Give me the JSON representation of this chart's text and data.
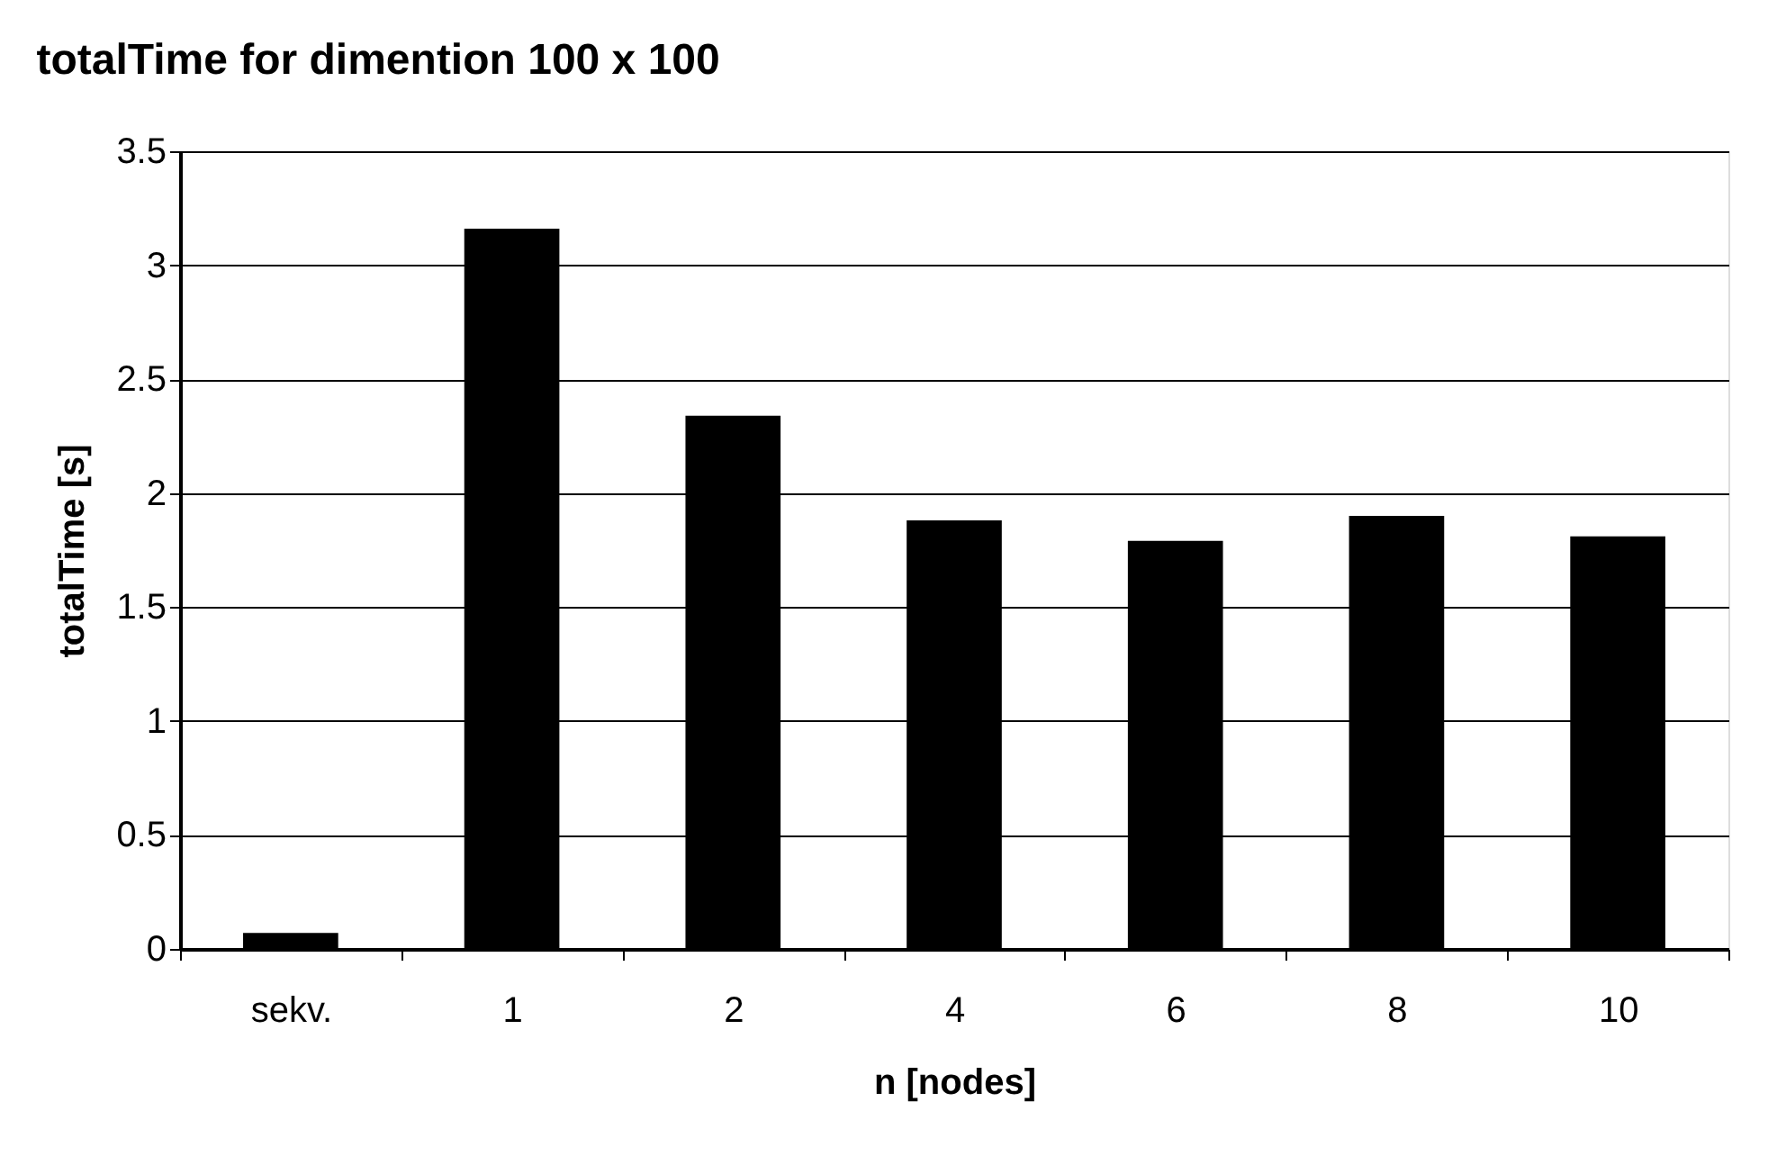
{
  "chart_data": {
    "type": "bar",
    "title": "totalTime for dimention 100 x 100",
    "xlabel": "n [nodes]",
    "ylabel": "totalTime [s]",
    "categories": [
      "sekv.",
      "1",
      "2",
      "4",
      "6",
      "8",
      "10"
    ],
    "values": [
      0.07,
      3.16,
      2.34,
      1.88,
      1.79,
      1.9,
      1.81
    ],
    "color": "#000000",
    "ylim": [
      0,
      3.5
    ],
    "yticks": [
      0,
      0.5,
      1,
      1.5,
      2,
      2.5,
      3,
      3.5
    ],
    "grid": "y"
  }
}
